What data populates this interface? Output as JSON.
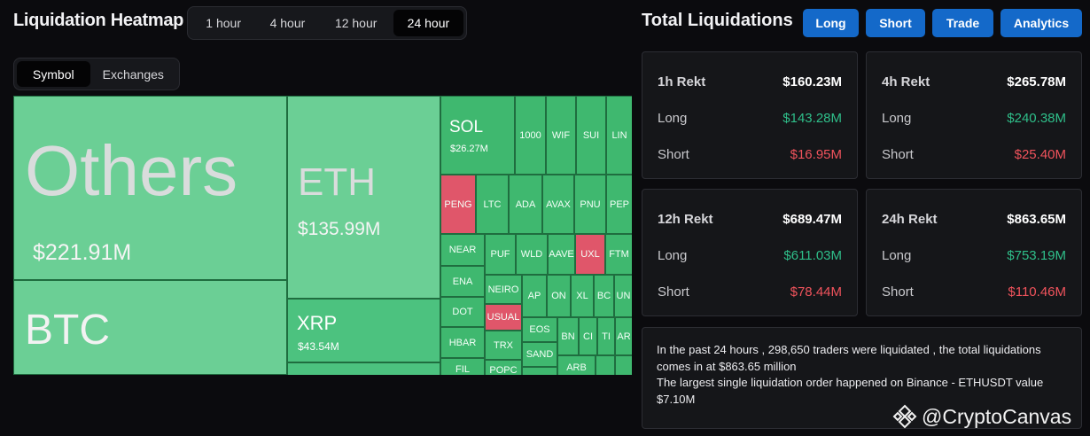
{
  "heatmap": {
    "title": "Liquidation Heatmap",
    "time_tabs": [
      "1 hour",
      "4 hour",
      "12 hour",
      "24 hour"
    ],
    "active_time_tab": "24 hour",
    "view_tabs": [
      "Symbol",
      "Exchanges"
    ],
    "active_view_tab": "Symbol",
    "cells": {
      "others": {
        "symbol": "Others",
        "value": "$221.91M"
      },
      "btc": {
        "symbol": "BTC"
      },
      "eth": {
        "symbol": "ETH",
        "value": "$135.99M"
      },
      "xrp": {
        "symbol": "XRP",
        "value": "$43.54M"
      },
      "sol": {
        "symbol": "SOL",
        "value": "$26.27M"
      },
      "small": {
        "c1000": "1000",
        "wif": "WIF",
        "sui": "SUI",
        "lin": "LIN",
        "peng": "PENG",
        "ltc": "LTC",
        "ada": "ADA",
        "avax": "AVAX",
        "pnut": "PNU",
        "pepe": "PEP",
        "near": "NEAR",
        "pufl": "PUF",
        "wld": "WLD",
        "aave": "AAVE",
        "uxl": "UXL",
        "ftm": "FTM",
        "ena": "ENA",
        "neiro": "NEIRO",
        "apt": "AP",
        "ond": "ON",
        "xlm": "XL",
        "bch": "BC",
        "uni": "UN",
        "dot": "DOT",
        "usual": "USUAL",
        "eos": "EOS",
        "hbar": "HBAR",
        "trx": "TRX",
        "bn": "BN",
        "ci": "CI",
        "ti": "TI",
        "ar": "AR",
        "sand": "SAND",
        "fil": "FIL",
        "popc": "POPC",
        "arb": "ARB"
      }
    }
  },
  "total": {
    "title": "Total Liquidations",
    "buttons": [
      "Long",
      "Short",
      "Trade",
      "Analytics"
    ],
    "cards": [
      {
        "label": "1h Rekt",
        "total": "$160.23M",
        "long_label": "Long",
        "long": "$143.28M",
        "short_label": "Short",
        "short": "$16.95M"
      },
      {
        "label": "4h Rekt",
        "total": "$265.78M",
        "long_label": "Long",
        "long": "$240.38M",
        "short_label": "Short",
        "short": "$25.40M"
      },
      {
        "label": "12h Rekt",
        "total": "$689.47M",
        "long_label": "Long",
        "long": "$611.03M",
        "short_label": "Short",
        "short": "$78.44M"
      },
      {
        "label": "24h Rekt",
        "total": "$863.65M",
        "long_label": "Long",
        "long": "$753.19M",
        "short_label": "Short",
        "short": "$110.46M"
      }
    ],
    "summary_line1": "In the past 24 hours , 298,650 traders were liquidated , the total liquidations comes in at $863.65 million",
    "summary_line2": "The largest single liquidation order happened on Binance - ETHUSDT value $7.10M"
  },
  "watermark": "@CryptoCanvas",
  "colors": {
    "long": "#2fbf8a",
    "short": "#f0535c",
    "accent": "#1469c9",
    "heat_green": "#6bcf95",
    "heat_red": "#e0566a"
  }
}
